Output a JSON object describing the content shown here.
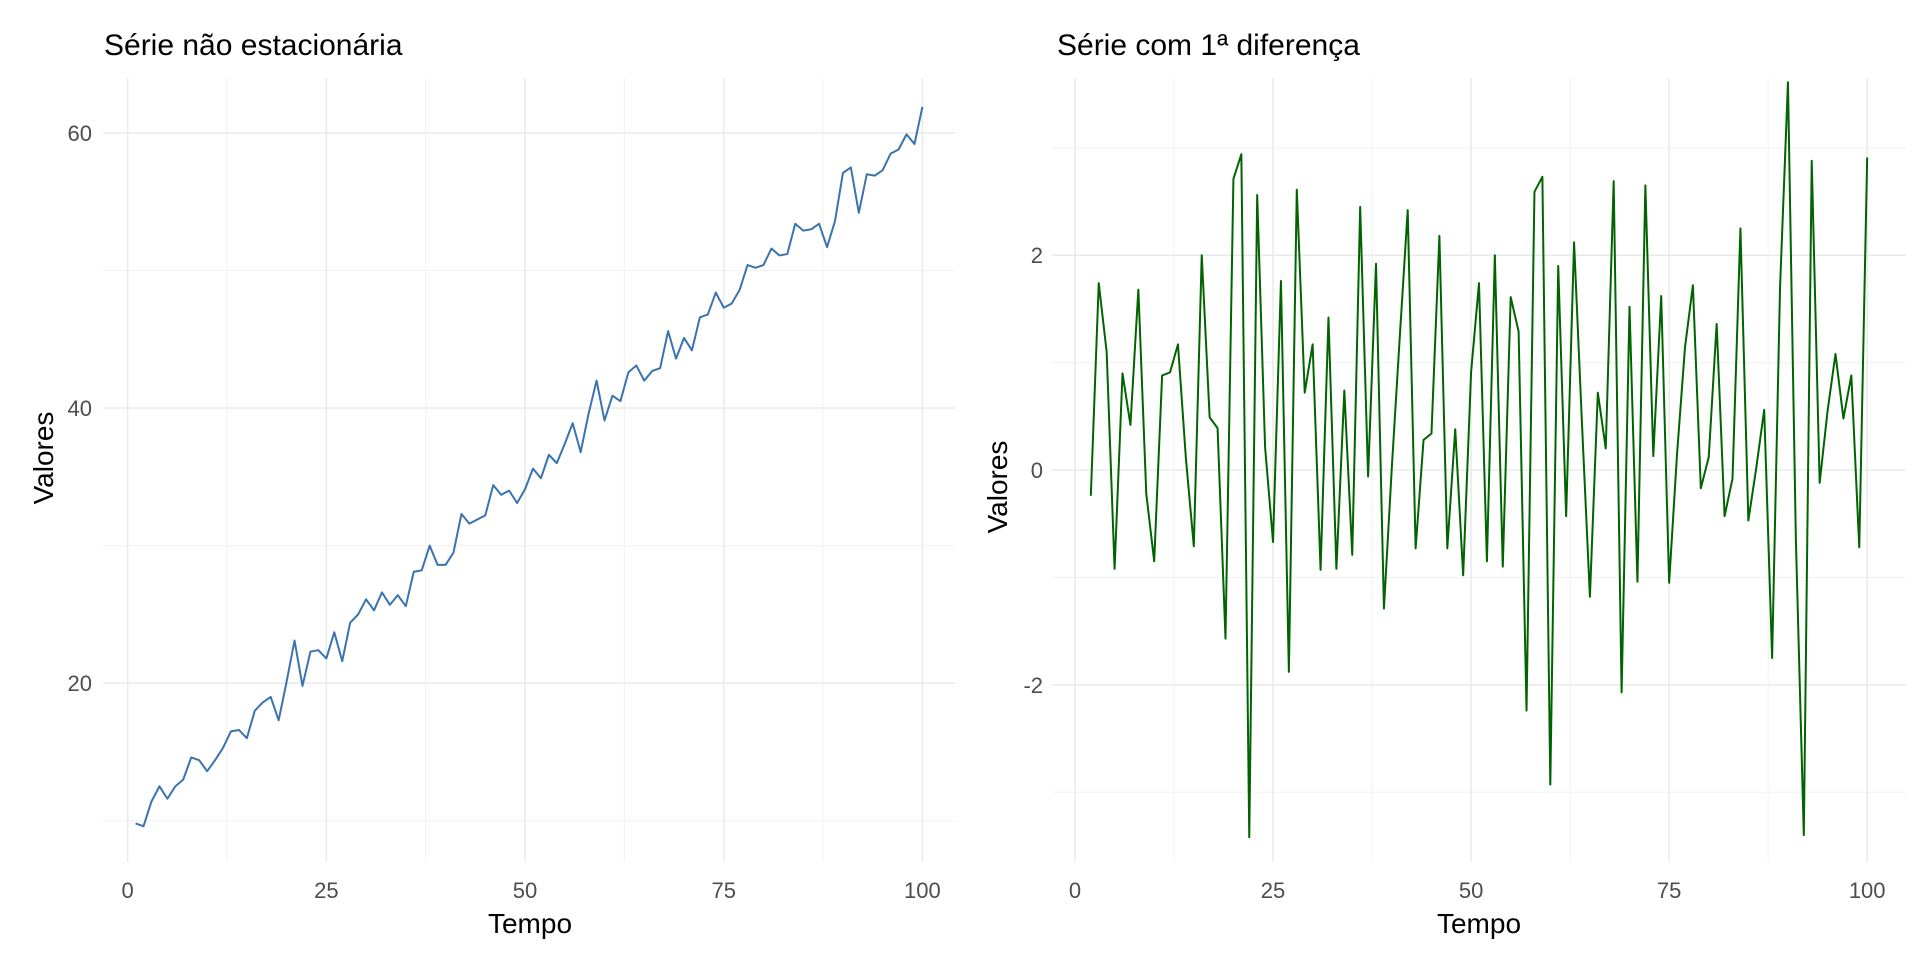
{
  "chart_data": [
    {
      "type": "line",
      "title": "Série não estacionária",
      "xlabel": "Tempo",
      "ylabel": "Valores",
      "xlim": [
        0,
        100
      ],
      "ylim": [
        7,
        64
      ],
      "xticks": [
        0,
        25,
        50,
        75,
        100
      ],
      "yticks": [
        20,
        40,
        60
      ],
      "grid": true,
      "color": "#3a73b0",
      "series": [
        {
          "x": [
            1,
            2,
            3,
            4,
            5,
            6,
            7,
            8,
            9,
            10,
            11,
            12,
            13,
            14,
            15,
            16,
            17,
            18,
            19,
            20,
            21,
            22,
            23,
            24,
            25,
            26,
            27,
            28,
            29,
            30,
            31,
            32,
            33,
            34,
            35,
            36,
            37,
            38,
            39,
            40,
            41,
            42,
            43,
            44,
            45,
            46,
            47,
            48,
            49,
            50,
            51,
            52,
            53,
            54,
            55,
            56,
            57,
            58,
            59,
            60,
            61,
            62,
            63,
            64,
            65,
            66,
            67,
            68,
            69,
            70,
            71,
            72,
            73,
            74,
            75,
            76,
            77,
            78,
            79,
            80,
            81,
            82,
            83,
            84,
            85,
            86,
            87,
            88,
            89,
            90,
            91,
            92,
            93,
            94,
            95,
            96,
            97,
            98,
            99,
            100
          ],
          "values": [
            9.8,
            9.6,
            11.4,
            12.5,
            11.6,
            12.5,
            13.0,
            14.6,
            14.4,
            13.6,
            14.4,
            15.3,
            16.5,
            16.6,
            16.0,
            18.0,
            18.6,
            19.0,
            17.3,
            20.1,
            23.1,
            19.8,
            22.3,
            22.4,
            21.8,
            23.7,
            21.6,
            24.4,
            25.0,
            26.1,
            25.3,
            26.6,
            25.7,
            26.4,
            25.6,
            28.1,
            28.2,
            30.0,
            28.6,
            28.6,
            29.5,
            32.3,
            31.6,
            31.9,
            32.2,
            34.4,
            33.7,
            34.0,
            33.1,
            34.1,
            35.6,
            34.9,
            36.6,
            36.0,
            37.4,
            38.9,
            36.8,
            39.6,
            42.0,
            39.1,
            40.9,
            40.5,
            42.6,
            43.1,
            42.0,
            42.7,
            42.9,
            45.6,
            43.6,
            45.1,
            44.2,
            46.6,
            46.8,
            48.4,
            47.3,
            47.6,
            48.6,
            50.4,
            50.2,
            50.4,
            51.6,
            51.1,
            51.2,
            53.4,
            52.9,
            53.0,
            53.4,
            51.7,
            53.6,
            57.1,
            57.5,
            54.2,
            57.0,
            56.9,
            57.3,
            58.5,
            58.8,
            59.9,
            59.2,
            61.9
          ]
        }
      ]
    },
    {
      "type": "line",
      "title": "Série com 1ª diferença",
      "xlabel": "Tempo",
      "ylabel": "Valores",
      "xlim": [
        2,
        100
      ],
      "ylim": [
        -3.65,
        3.65
      ],
      "xticks": [
        0,
        25,
        50,
        75,
        100
      ],
      "yticks": [
        -2,
        0,
        2
      ],
      "grid": true,
      "color": "#006400",
      "series": [
        {
          "x": [
            2,
            3,
            4,
            5,
            6,
            7,
            8,
            9,
            10,
            11,
            12,
            13,
            14,
            15,
            16,
            17,
            18,
            19,
            20,
            21,
            22,
            23,
            24,
            25,
            26,
            27,
            28,
            29,
            30,
            31,
            32,
            33,
            34,
            35,
            36,
            37,
            38,
            39,
            40,
            41,
            42,
            43,
            44,
            45,
            46,
            47,
            48,
            49,
            50,
            51,
            52,
            53,
            54,
            55,
            56,
            57,
            58,
            59,
            60,
            61,
            62,
            63,
            64,
            65,
            66,
            67,
            68,
            69,
            70,
            71,
            72,
            73,
            74,
            75,
            76,
            77,
            78,
            79,
            80,
            81,
            82,
            83,
            84,
            85,
            86,
            87,
            88,
            89,
            90,
            91,
            92,
            93,
            94,
            95,
            96,
            97,
            98,
            99,
            100
          ],
          "values": [
            -0.24,
            1.74,
            1.1,
            -0.92,
            0.9,
            0.42,
            1.68,
            -0.22,
            -0.85,
            0.88,
            0.91,
            1.17,
            0.11,
            -0.71,
            2.0,
            0.49,
            0.39,
            -1.57,
            2.71,
            2.94,
            -3.42,
            2.56,
            0.21,
            -0.67,
            1.76,
            -1.88,
            2.61,
            0.72,
            1.17,
            -0.93,
            1.42,
            -0.92,
            0.74,
            -0.79,
            2.45,
            -0.06,
            1.92,
            -1.29,
            0.03,
            1.24,
            2.42,
            -0.73,
            0.28,
            0.34,
            2.18,
            -0.73,
            0.38,
            -0.98,
            0.91,
            1.74,
            -0.85,
            2.0,
            -0.9,
            1.61,
            1.29,
            -2.24,
            2.59,
            2.73,
            -2.93,
            1.9,
            -0.43,
            2.12,
            0.43,
            -1.18,
            0.72,
            0.2,
            2.69,
            -2.07,
            1.52,
            -1.04,
            2.65,
            0.13,
            1.62,
            -1.05,
            0.15,
            1.14,
            1.72,
            -0.17,
            0.12,
            1.36,
            -0.43,
            -0.08,
            2.25,
            -0.47,
            0.02,
            0.56,
            -1.75,
            1.7,
            3.61,
            -0.65,
            -3.4,
            2.88,
            -0.12,
            0.55,
            1.08,
            0.48,
            0.88,
            -0.72,
            2.91
          ]
        }
      ]
    }
  ]
}
